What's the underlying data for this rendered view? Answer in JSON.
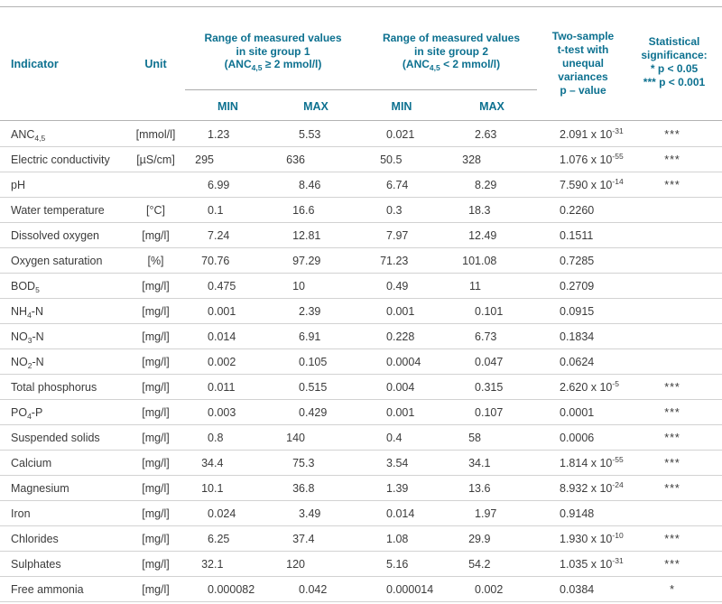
{
  "colors": {
    "accent": "#0d7190",
    "body_text": "#3b3b3b",
    "strong_line": "#b3b3b3",
    "row_line": "#d2d2d2"
  },
  "header": {
    "indicator": "Indicator",
    "unit": "Unit",
    "group1_lines": [
      "Range of measured values",
      "in site group 1",
      "(ANC_{4,5} ≥ 2 mmol/l)"
    ],
    "group2_lines": [
      "Range of measured values",
      "in site group 2",
      "(ANC_{4,5} < 2 mmol/l)"
    ],
    "ttest_lines": [
      "Two-sample",
      "t-test with",
      "unequal",
      "variances",
      "p – value"
    ],
    "sig_lines": [
      "Statistical",
      "significance:",
      "* p < 0.05",
      "*** p < 0.001"
    ],
    "min_label": "MIN",
    "max_label": "MAX"
  },
  "rows": [
    {
      "indicator": "ANC_{4,5}",
      "unit": "[mmol/l]",
      "g1_min": "1.23",
      "g1_max": "5.53",
      "g2_min": "0.021",
      "g2_max": "2.63",
      "p_value": "2.091 x 10^{-31}",
      "significance": "***"
    },
    {
      "indicator": "Electric conductivity",
      "unit": "[µS/cm]",
      "g1_min": "295",
      "g1_max": "636",
      "g2_min": "50.5",
      "g2_max": "328",
      "p_value": "1.076 x 10^{-55}",
      "significance": "***"
    },
    {
      "indicator": "pH",
      "unit": "",
      "g1_min": "6.99",
      "g1_max": "8.46",
      "g2_min": "6.74",
      "g2_max": "8.29",
      "p_value": "7.590 x 10^{-14}",
      "significance": "***"
    },
    {
      "indicator": "Water temperature",
      "unit": "[°C]",
      "g1_min": "0.1",
      "g1_max": "16.6",
      "g2_min": "0.3",
      "g2_max": "18.3",
      "p_value": "0.2260",
      "significance": ""
    },
    {
      "indicator": "Dissolved oxygen",
      "unit": "[mg/l]",
      "g1_min": "7.24",
      "g1_max": "12.81",
      "g2_min": "7.97",
      "g2_max": "12.49",
      "p_value": "0.1511",
      "significance": ""
    },
    {
      "indicator": "Oxygen saturation",
      "unit": "[%]",
      "g1_min": "70.76",
      "g1_max": "97.29",
      "g2_min": "71.23",
      "g2_max": "101.08",
      "p_value": "0.7285",
      "significance": ""
    },
    {
      "indicator": "BOD_{5}",
      "unit": "[mg/l]",
      "g1_min": "0.475",
      "g1_max": "10",
      "g2_min": "0.49",
      "g2_max": "11",
      "p_value": "0.2709",
      "significance": ""
    },
    {
      "indicator": "NH_{4}-N",
      "unit": "[mg/l]",
      "g1_min": "0.001",
      "g1_max": "2.39",
      "g2_min": "0.001",
      "g2_max": "0.101",
      "p_value": "0.0915",
      "significance": ""
    },
    {
      "indicator": "NO_{3}-N",
      "unit": "[mg/l]",
      "g1_min": "0.014",
      "g1_max": "6.91",
      "g2_min": "0.228",
      "g2_max": "6.73",
      "p_value": "0.1834",
      "significance": ""
    },
    {
      "indicator": "NO_{2}-N",
      "unit": "[mg/l]",
      "g1_min": "0.002",
      "g1_max": "0.105",
      "g2_min": "0.0004",
      "g2_max": "0.047",
      "p_value": "0.0624",
      "significance": ""
    },
    {
      "indicator": "Total phosphorus",
      "unit": "[mg/l]",
      "g1_min": "0.011",
      "g1_max": "0.515",
      "g2_min": "0.004",
      "g2_max": "0.315",
      "p_value": "2.620 x 10^{-5}",
      "significance": "***"
    },
    {
      "indicator": "PO_{4}-P",
      "unit": "[mg/l]",
      "g1_min": "0.003",
      "g1_max": "0.429",
      "g2_min": "0.001",
      "g2_max": "0.107",
      "p_value": "0.0001",
      "significance": "***"
    },
    {
      "indicator": "Suspended solids",
      "unit": "[mg/l]",
      "g1_min": "0.8",
      "g1_max": "140",
      "g2_min": "0.4",
      "g2_max": "58",
      "p_value": "0.0006",
      "significance": "***"
    },
    {
      "indicator": "Calcium",
      "unit": "[mg/l]",
      "g1_min": "34.4",
      "g1_max": "75.3",
      "g2_min": "3.54",
      "g2_max": "34.1",
      "p_value": "1.814 x 10^{-55}",
      "significance": "***"
    },
    {
      "indicator": "Magnesium",
      "unit": "[mg/l]",
      "g1_min": "10.1",
      "g1_max": "36.8",
      "g2_min": "1.39",
      "g2_max": "13.6",
      "p_value": "8.932 x 10^{-24}",
      "significance": "***"
    },
    {
      "indicator": "Iron",
      "unit": "[mg/l]",
      "g1_min": "0.024",
      "g1_max": "3.49",
      "g2_min": "0.014",
      "g2_max": "1.97",
      "p_value": "0.9148",
      "significance": ""
    },
    {
      "indicator": "Chlorides",
      "unit": "[mg/l]",
      "g1_min": "6.25",
      "g1_max": "37.4",
      "g2_min": "1.08",
      "g2_max": "29.9",
      "p_value": "1.930 x 10^{-10}",
      "significance": "***"
    },
    {
      "indicator": "Sulphates",
      "unit": "[mg/l]",
      "g1_min": "32.1",
      "g1_max": "120",
      "g2_min": "5.16",
      "g2_max": "54.2",
      "p_value": "1.035 x 10^{-31}",
      "significance": "***"
    },
    {
      "indicator": "Free ammonia",
      "unit": "[mg/l]",
      "g1_min": "0.000082",
      "g1_max": "0.042",
      "g2_min": "0.000014",
      "g2_max": "0.002",
      "p_value": "0.0384",
      "significance": "*"
    }
  ]
}
